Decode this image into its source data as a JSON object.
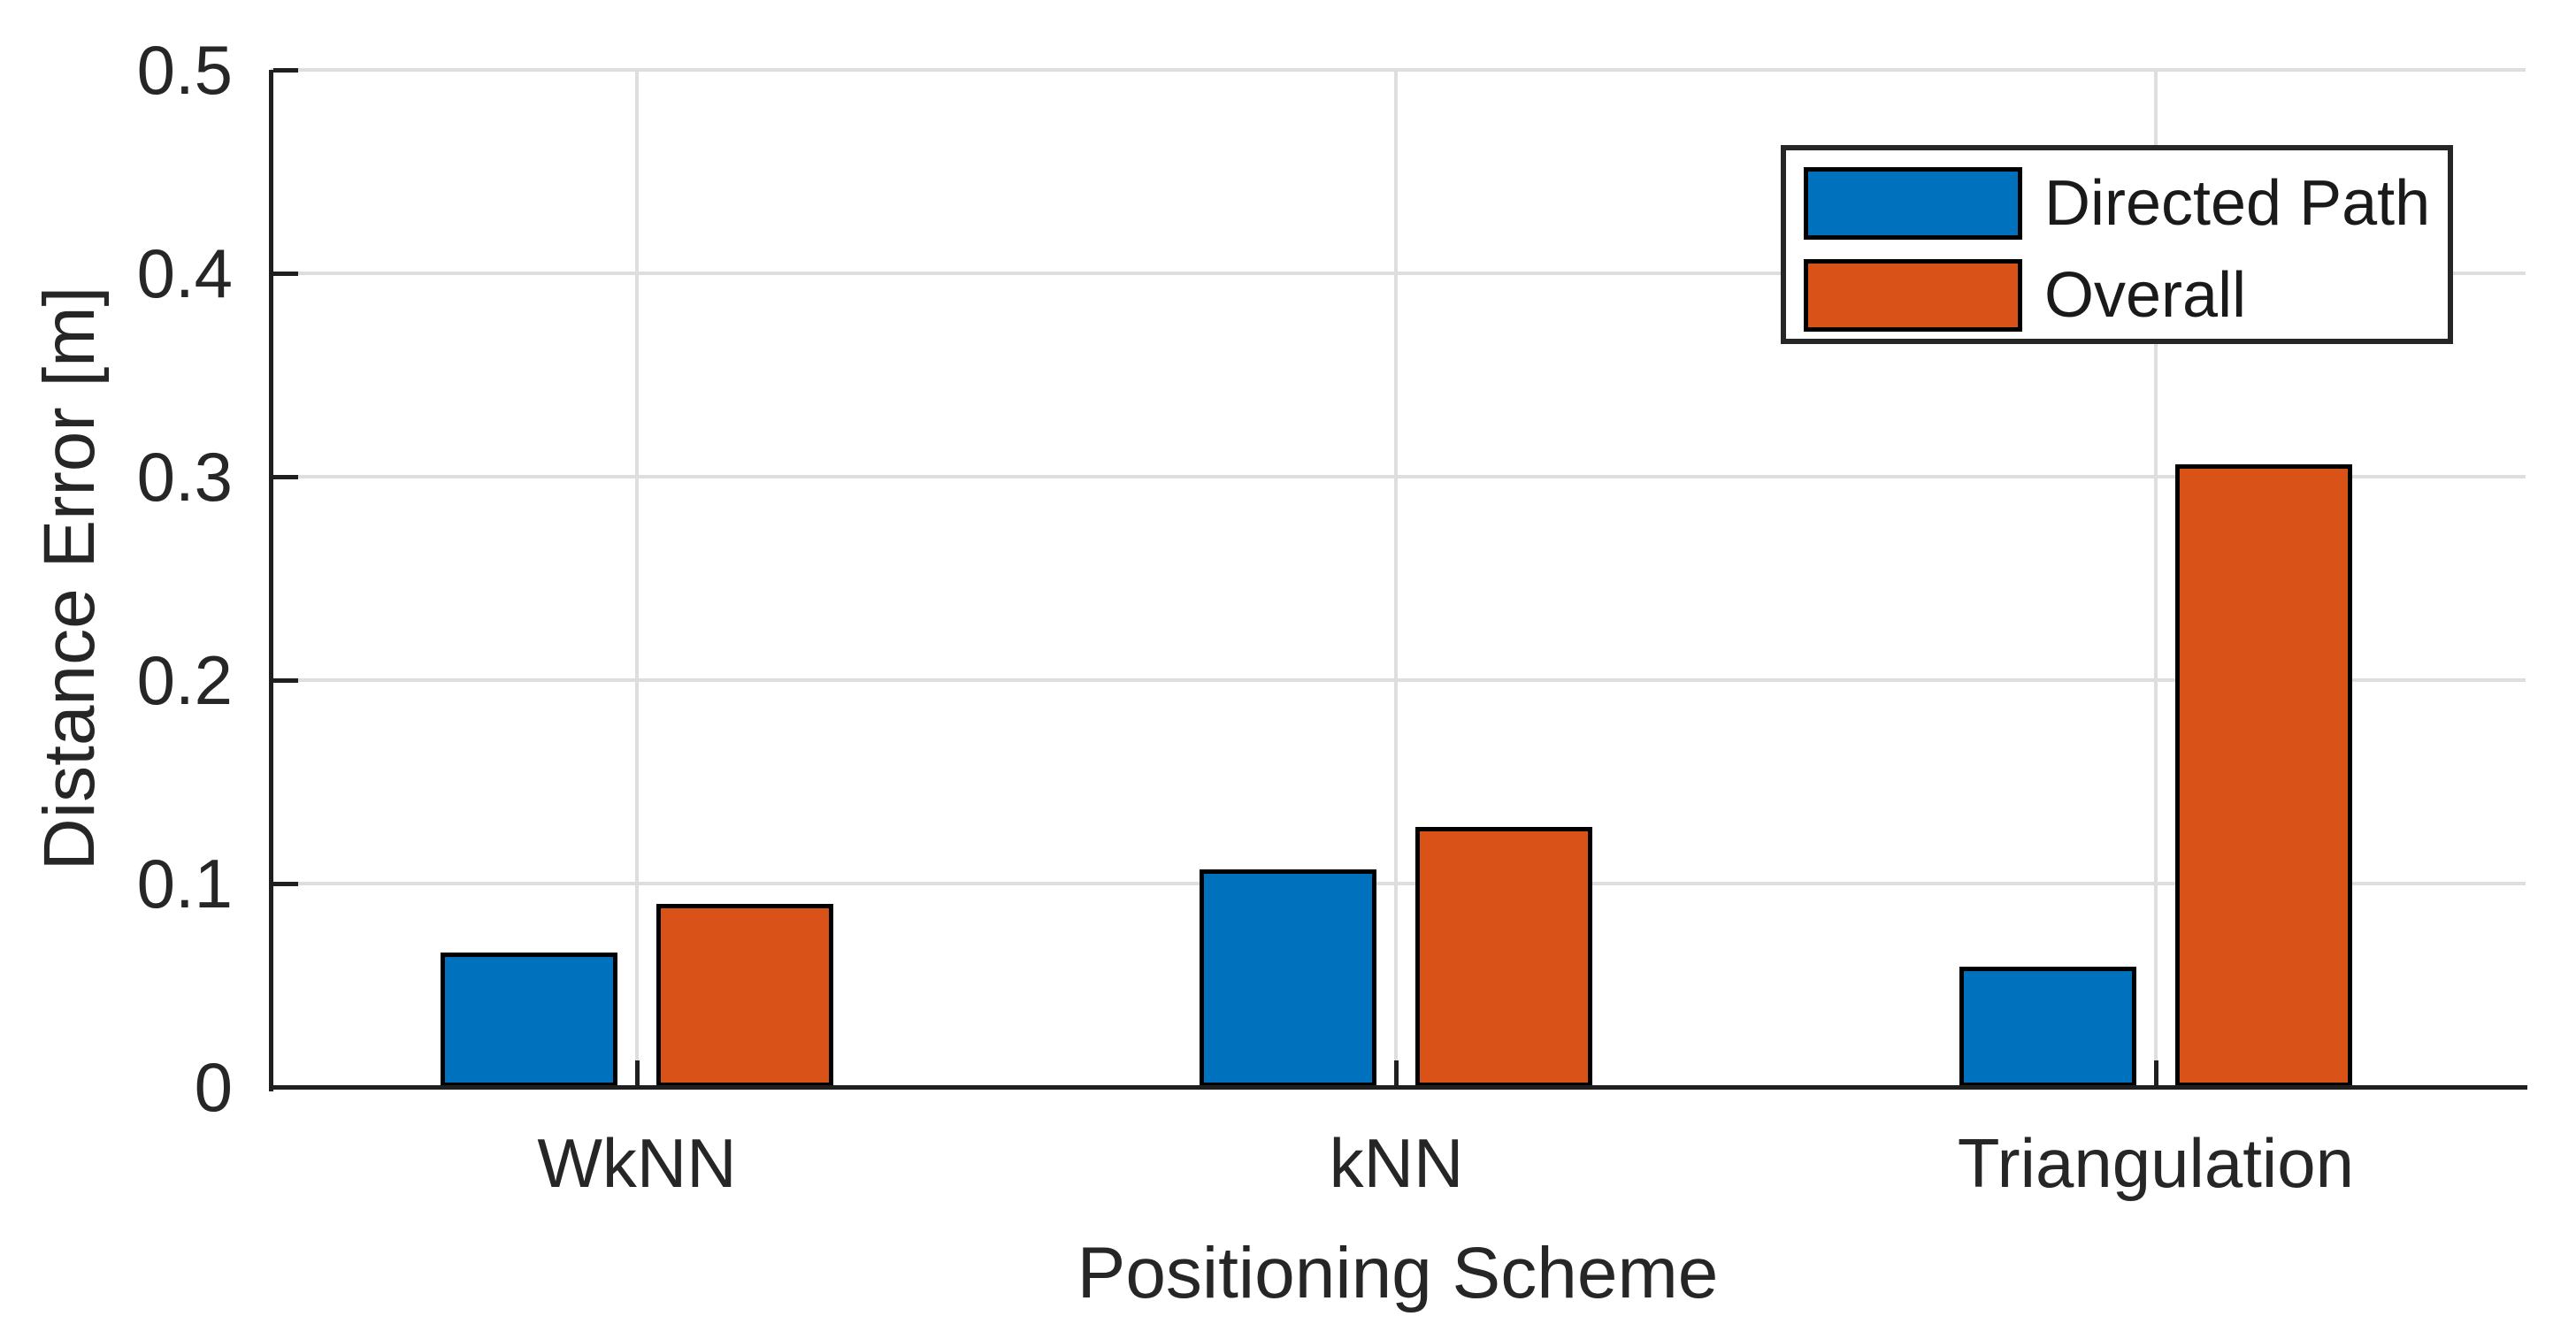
{
  "figure": {
    "background": "#FFFFFF"
  },
  "chart_data": {
    "type": "bar",
    "title": "",
    "xlabel": "Positioning Scheme",
    "ylabel": "Distance Error [m]",
    "categories": [
      "WkNN",
      "kNN",
      "Triangulation"
    ],
    "series": [
      {
        "name": "Directed Path",
        "color": "#0072BD",
        "values": [
          0.066,
          0.107,
          0.059
        ]
      },
      {
        "name": "Overall",
        "color": "#D95319",
        "values": [
          0.09,
          0.128,
          0.306
        ]
      }
    ],
    "ylim": [
      0,
      0.5
    ],
    "yticks": [
      0,
      0.1,
      0.2,
      0.3,
      0.4,
      0.5
    ],
    "ytick_labels": [
      "0",
      "0.1",
      "0.2",
      "0.3",
      "0.4",
      "0.5"
    ],
    "grid": true,
    "legend_position": "top-right",
    "colors": {
      "bar_edge": "#000000",
      "grid": "#DEDEDE",
      "axis": "#1F1F1F",
      "text": "#262626"
    }
  }
}
